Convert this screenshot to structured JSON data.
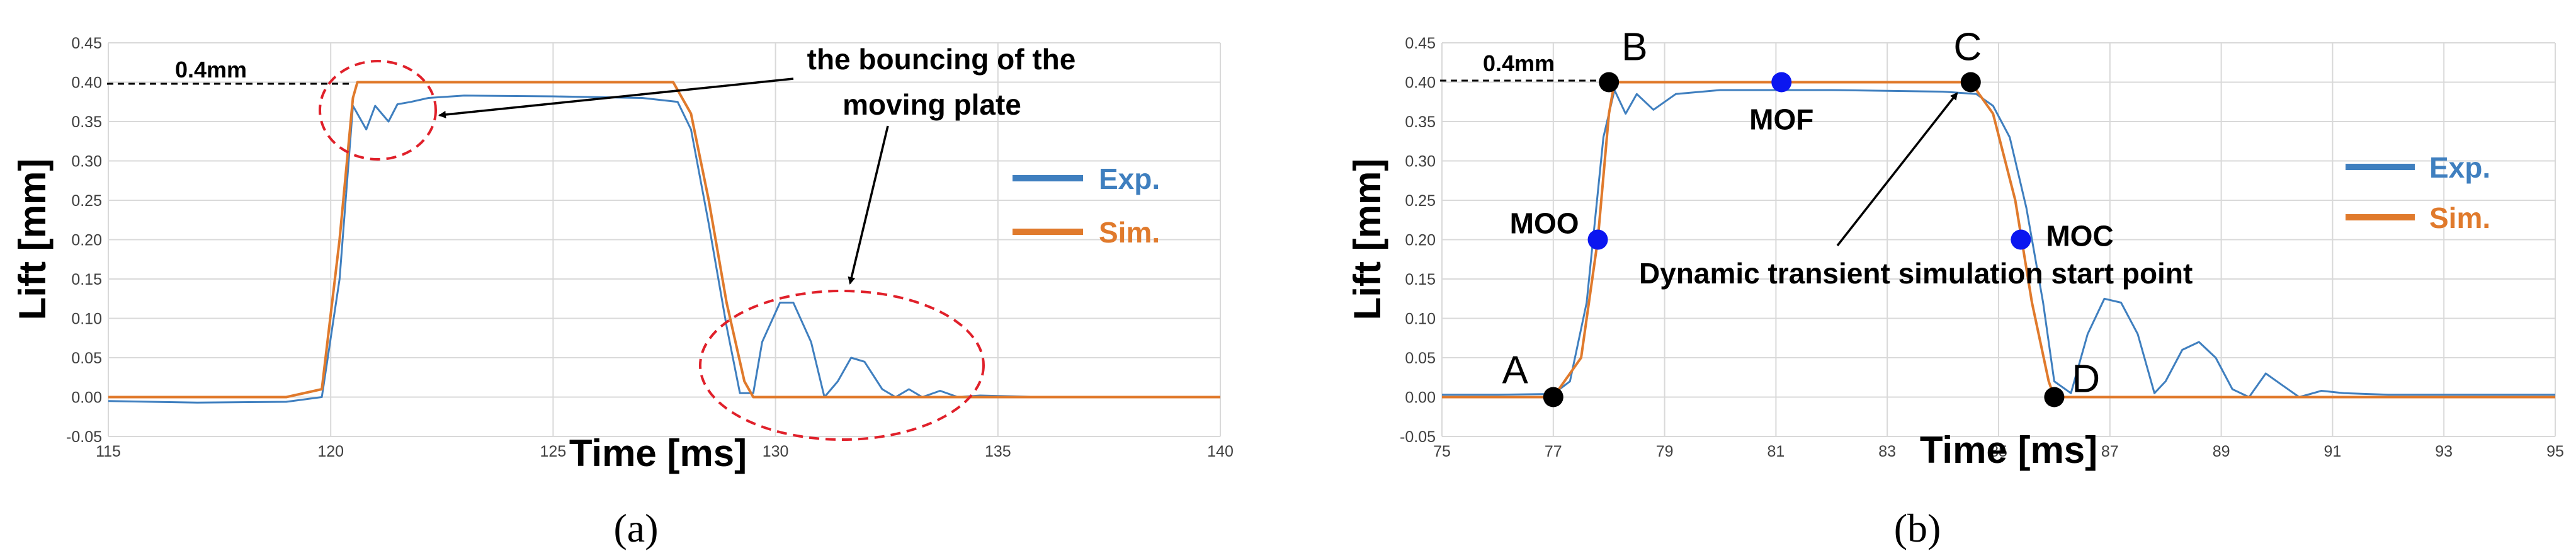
{
  "colors": {
    "exp": "#3f7fbf",
    "sim": "#e07a2c",
    "grid": "#d9d9d9",
    "marker_black": "#000000",
    "marker_blue": "#0b16f0",
    "ellipse": "#e0202a"
  },
  "chart_data": [
    {
      "type": "line",
      "panel_label": "(a)",
      "xlabel": "Time [ms]",
      "ylabel": "Lift [mm]",
      "xlim": [
        115,
        140
      ],
      "ylim": [
        -0.05,
        0.45
      ],
      "x_ticks": [
        "115",
        "120",
        "125",
        "130",
        "135",
        "140"
      ],
      "y_ticks": [
        "-0.05",
        "0.00",
        "0.05",
        "0.10",
        "0.15",
        "0.20",
        "0.25",
        "0.30",
        "0.35",
        "0.40",
        "0.45"
      ],
      "grid": true,
      "legend": {
        "position": "right",
        "entries": [
          "Exp.",
          "Sim."
        ]
      },
      "series": [
        {
          "name": "Exp.",
          "x": [
            115,
            117,
            119,
            119.8,
            120.2,
            120.5,
            120.8,
            121.0,
            121.3,
            121.5,
            121.8,
            122.2,
            123,
            125,
            127,
            127.8,
            128.1,
            128.5,
            128.9,
            129.2,
            129.5,
            129.7,
            130.1,
            130.4,
            130.8,
            131.1,
            131.4,
            131.7,
            132.0,
            132.4,
            132.7,
            133.0,
            133.3,
            133.7,
            134.1,
            134.6,
            136,
            138,
            140
          ],
          "y": [
            -0.005,
            -0.007,
            -0.006,
            0.0,
            0.15,
            0.37,
            0.34,
            0.37,
            0.35,
            0.372,
            0.375,
            0.38,
            0.383,
            0.382,
            0.38,
            0.375,
            0.34,
            0.22,
            0.09,
            0.005,
            0.005,
            0.07,
            0.12,
            0.12,
            0.07,
            0.0,
            0.02,
            0.05,
            0.045,
            0.01,
            0.0,
            0.01,
            0.0,
            0.008,
            0.0,
            0.002,
            0.0,
            0.0,
            0.0
          ]
        },
        {
          "name": "Sim.",
          "x": [
            115,
            119,
            119.8,
            120.2,
            120.5,
            120.6,
            127.7,
            128.1,
            128.5,
            128.9,
            129.3,
            129.5,
            135,
            140
          ],
          "y": [
            0.0,
            0.0,
            0.01,
            0.2,
            0.38,
            0.4,
            0.4,
            0.36,
            0.25,
            0.12,
            0.02,
            0.0,
            0.0,
            0.0
          ]
        }
      ],
      "annotations": [
        {
          "text": "0.4mm"
        },
        {
          "text": "the bouncing of the",
          "text2": "moving plate"
        }
      ]
    },
    {
      "type": "line",
      "panel_label": "(b)",
      "xlabel": "Time [ms]",
      "ylabel": "Lift [mm]",
      "xlim": [
        75,
        95
      ],
      "ylim": [
        -0.05,
        0.45
      ],
      "x_ticks": [
        "75",
        "77",
        "79",
        "81",
        "83",
        "85",
        "87",
        "89",
        "91",
        "93",
        "95"
      ],
      "y_ticks": [
        "-0.05",
        "0.00",
        "0.05",
        "0.10",
        "0.15",
        "0.20",
        "0.25",
        "0.30",
        "0.35",
        "0.40",
        "0.45"
      ],
      "grid": true,
      "legend": {
        "position": "right",
        "entries": [
          "Exp.",
          "Sim."
        ]
      },
      "series": [
        {
          "name": "Exp.",
          "x": [
            75,
            76,
            77,
            77.3,
            77.6,
            77.9,
            78.1,
            78.3,
            78.5,
            78.8,
            79.2,
            80,
            82,
            84,
            84.6,
            84.9,
            85.2,
            85.5,
            85.8,
            86.0,
            86.3,
            86.6,
            86.9,
            87.2,
            87.5,
            87.8,
            88.0,
            88.3,
            88.6,
            88.9,
            89.2,
            89.5,
            89.8,
            90.1,
            90.4,
            90.8,
            91.2,
            92,
            93,
            95
          ],
          "y": [
            0.003,
            0.003,
            0.004,
            0.02,
            0.12,
            0.33,
            0.39,
            0.36,
            0.385,
            0.365,
            0.385,
            0.39,
            0.39,
            0.388,
            0.385,
            0.37,
            0.33,
            0.24,
            0.12,
            0.02,
            0.005,
            0.08,
            0.125,
            0.12,
            0.08,
            0.005,
            0.02,
            0.06,
            0.07,
            0.05,
            0.01,
            0.0,
            0.03,
            0.015,
            0.0,
            0.008,
            0.005,
            0.003,
            0.003,
            0.003
          ]
        },
        {
          "name": "Sim.",
          "x": [
            75,
            77,
            77.5,
            77.8,
            78.0,
            78.1,
            84.5,
            84.9,
            85.3,
            85.6,
            85.9,
            86.0,
            90,
            95
          ],
          "y": [
            0.0,
            0.0,
            0.05,
            0.2,
            0.36,
            0.4,
            0.4,
            0.36,
            0.25,
            0.12,
            0.02,
            0.0,
            0.0,
            0.0
          ]
        }
      ],
      "points": [
        {
          "label": "A",
          "x": 77.0,
          "y": 0.0,
          "color": "black"
        },
        {
          "label": "B",
          "x": 78.0,
          "y": 0.4,
          "color": "black"
        },
        {
          "label": "C",
          "x": 84.5,
          "y": 0.4,
          "color": "black"
        },
        {
          "label": "D",
          "x": 86.0,
          "y": 0.0,
          "color": "black"
        },
        {
          "label": "MOO",
          "x": 77.8,
          "y": 0.2,
          "color": "blue"
        },
        {
          "label": "MOF",
          "x": 81.1,
          "y": 0.4,
          "color": "blue"
        },
        {
          "label": "MOC",
          "x": 85.4,
          "y": 0.2,
          "color": "blue"
        }
      ],
      "annotations": [
        {
          "text": "0.4mm"
        },
        {
          "text": "Dynamic transient simulation start point"
        }
      ]
    }
  ]
}
